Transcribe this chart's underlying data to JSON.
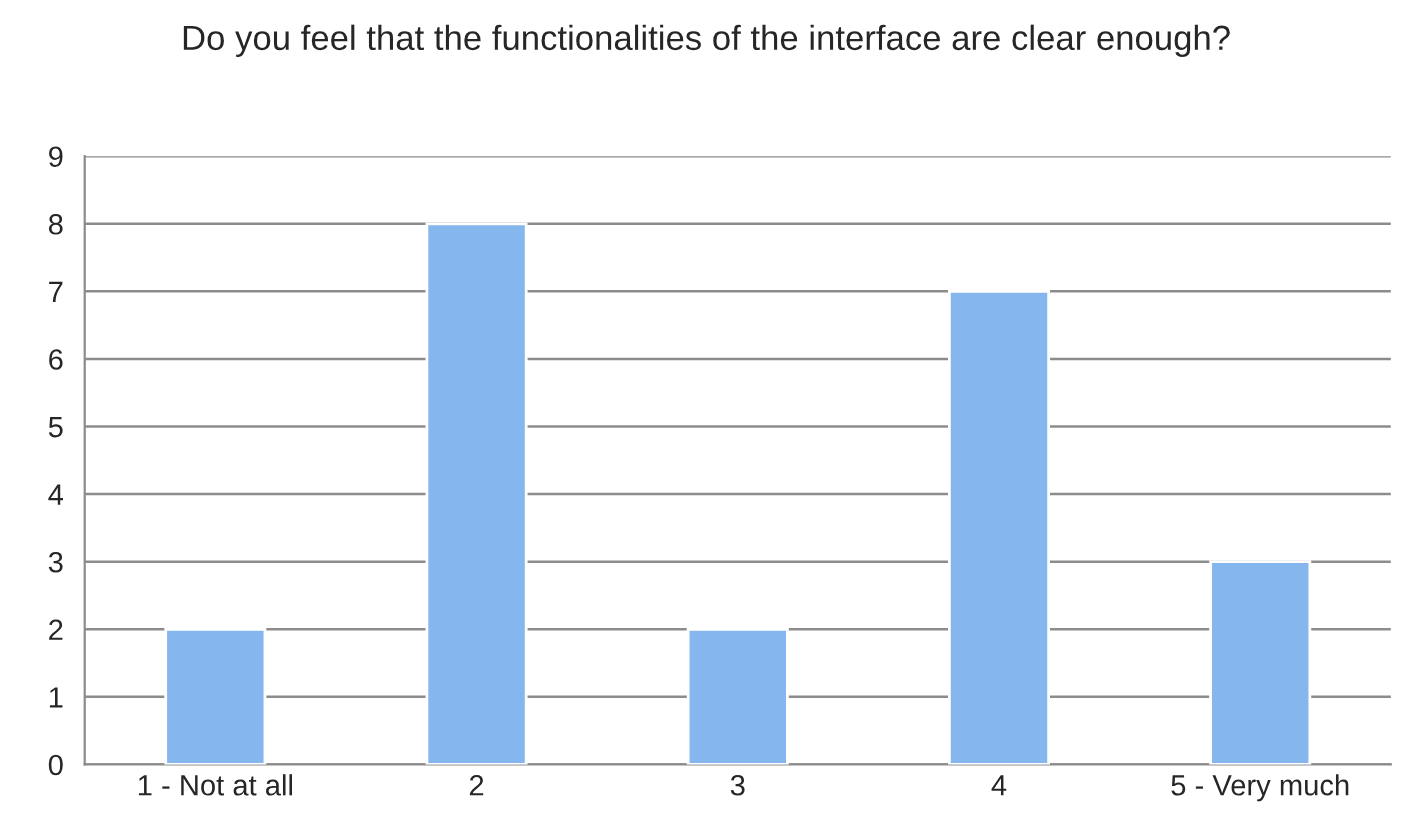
{
  "chart_data": {
    "type": "bar",
    "title": "Do you feel that the functionalities of the interface are clear enough?",
    "categories": [
      "1 - Not at all",
      "2",
      "3",
      "4",
      "5 - Very much"
    ],
    "values": [
      2,
      8,
      2,
      7,
      3
    ],
    "color": "#86b6ee",
    "ylim": [
      0,
      9
    ],
    "yticks": [
      0,
      1,
      2,
      3,
      4,
      5,
      6,
      7,
      8,
      9
    ],
    "grid": "y",
    "legend": false
  }
}
